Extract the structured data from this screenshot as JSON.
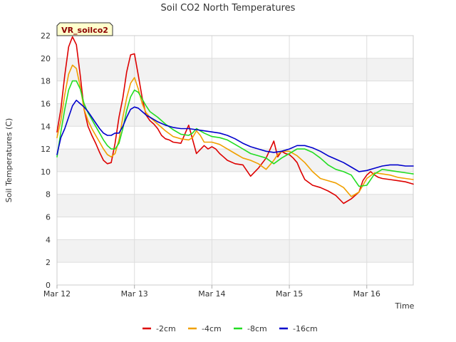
{
  "chart_data": {
    "type": "line",
    "title": "Soil CO2 North Temperatures",
    "badge": "VR_soilco2",
    "xlabel": "Time",
    "ylabel": "Soil Temperatures (C)",
    "xlim": [
      0,
      4.6
    ],
    "ylim": [
      0,
      22
    ],
    "x_ticks": [
      {
        "value": 0,
        "label": "Mar 12"
      },
      {
        "value": 1,
        "label": "Mar 13"
      },
      {
        "value": 2,
        "label": "Mar 14"
      },
      {
        "value": 3,
        "label": "Mar 15"
      },
      {
        "value": 4,
        "label": "Mar 16"
      }
    ],
    "y_ticks": [
      0,
      2,
      4,
      6,
      8,
      10,
      12,
      14,
      16,
      18,
      20,
      22
    ],
    "grid": true,
    "legend_position": "bottom",
    "series": [
      {
        "name": "-2cm",
        "color": "#dd0000",
        "x": [
          0,
          0.05,
          0.1,
          0.15,
          0.2,
          0.25,
          0.3,
          0.35,
          0.4,
          0.45,
          0.5,
          0.55,
          0.6,
          0.65,
          0.7,
          0.75,
          0.8,
          0.85,
          0.9,
          0.95,
          1.0,
          1.05,
          1.1,
          1.15,
          1.2,
          1.25,
          1.3,
          1.35,
          1.4,
          1.45,
          1.5,
          1.6,
          1.7,
          1.8,
          1.9,
          1.95,
          2.0,
          2.05,
          2.1,
          2.15,
          2.2,
          2.3,
          2.4,
          2.5,
          2.6,
          2.7,
          2.8,
          2.85,
          2.9,
          2.95,
          3.0,
          3.05,
          3.1,
          3.15,
          3.2,
          3.3,
          3.4,
          3.5,
          3.6,
          3.7,
          3.8,
          3.9,
          3.95,
          4.0,
          4.05,
          4.1,
          4.15,
          4.2,
          4.3,
          4.4,
          4.5,
          4.6
        ],
        "y": [
          13.5,
          15.5,
          18.5,
          21.0,
          21.9,
          21.2,
          18.5,
          15.5,
          14.0,
          13.2,
          12.5,
          11.7,
          11.0,
          10.7,
          10.8,
          12.5,
          14.8,
          16.5,
          18.8,
          20.3,
          20.4,
          18.5,
          16.5,
          15.0,
          14.5,
          14.2,
          13.8,
          13.2,
          12.9,
          12.8,
          12.6,
          12.5,
          14.1,
          11.6,
          12.3,
          12.0,
          12.2,
          12.0,
          11.6,
          11.3,
          11.0,
          10.7,
          10.6,
          9.6,
          10.3,
          11.2,
          12.7,
          11.3,
          11.8,
          11.6,
          11.5,
          11.2,
          10.8,
          10.0,
          9.3,
          8.8,
          8.6,
          8.3,
          7.9,
          7.2,
          7.6,
          8.2,
          9.2,
          9.7,
          10.0,
          9.7,
          9.5,
          9.4,
          9.3,
          9.2,
          9.1,
          8.9
        ]
      },
      {
        "name": "-4cm",
        "color": "#f0a000",
        "x": [
          0,
          0.05,
          0.1,
          0.15,
          0.2,
          0.25,
          0.3,
          0.35,
          0.4,
          0.45,
          0.5,
          0.55,
          0.6,
          0.65,
          0.7,
          0.75,
          0.8,
          0.85,
          0.9,
          0.95,
          1.0,
          1.05,
          1.1,
          1.15,
          1.2,
          1.3,
          1.4,
          1.5,
          1.6,
          1.7,
          1.75,
          1.8,
          1.85,
          1.9,
          2.0,
          2.1,
          2.2,
          2.3,
          2.4,
          2.5,
          2.6,
          2.7,
          2.8,
          2.85,
          2.9,
          3.0,
          3.1,
          3.2,
          3.3,
          3.4,
          3.5,
          3.6,
          3.7,
          3.8,
          3.9,
          4.0,
          4.1,
          4.2,
          4.3,
          4.4,
          4.5,
          4.6
        ],
        "y": [
          13.0,
          14.5,
          16.8,
          18.6,
          19.4,
          19.1,
          17.5,
          15.5,
          14.5,
          13.8,
          13.2,
          12.6,
          12.0,
          11.5,
          11.3,
          11.6,
          12.8,
          14.8,
          16.5,
          17.8,
          18.3,
          17.3,
          16.0,
          15.2,
          14.8,
          14.2,
          13.6,
          13.1,
          12.9,
          12.8,
          13.0,
          13.6,
          13.2,
          12.6,
          12.6,
          12.4,
          12.0,
          11.6,
          11.2,
          11.0,
          10.7,
          10.2,
          11.0,
          11.5,
          11.8,
          11.8,
          11.4,
          10.8,
          10.0,
          9.4,
          9.2,
          9.0,
          8.6,
          7.8,
          8.2,
          9.4,
          9.9,
          9.8,
          9.7,
          9.5,
          9.4,
          9.3
        ]
      },
      {
        "name": "-8cm",
        "color": "#22dd22",
        "x": [
          0,
          0.05,
          0.1,
          0.15,
          0.2,
          0.25,
          0.3,
          0.35,
          0.4,
          0.45,
          0.5,
          0.55,
          0.6,
          0.65,
          0.7,
          0.75,
          0.8,
          0.85,
          0.9,
          0.95,
          1.0,
          1.05,
          1.1,
          1.15,
          1.2,
          1.3,
          1.4,
          1.5,
          1.6,
          1.7,
          1.75,
          1.8,
          1.9,
          2.0,
          2.1,
          2.2,
          2.3,
          2.4,
          2.5,
          2.6,
          2.7,
          2.8,
          2.9,
          3.0,
          3.1,
          3.2,
          3.3,
          3.4,
          3.5,
          3.6,
          3.7,
          3.8,
          3.9,
          4.0,
          4.1,
          4.2,
          4.3,
          4.4,
          4.5,
          4.6
        ],
        "y": [
          11.3,
          13.5,
          15.5,
          17.2,
          18.0,
          18.0,
          17.3,
          16.0,
          15.2,
          14.6,
          14.0,
          13.4,
          12.8,
          12.3,
          12.0,
          12.0,
          12.5,
          13.8,
          15.4,
          16.6,
          17.2,
          17.0,
          16.4,
          15.8,
          15.3,
          14.8,
          14.2,
          13.7,
          13.3,
          13.2,
          13.4,
          13.8,
          13.4,
          13.1,
          13.0,
          12.8,
          12.4,
          12.0,
          11.6,
          11.4,
          11.2,
          10.7,
          11.2,
          11.6,
          12.0,
          12.0,
          11.7,
          11.2,
          10.6,
          10.2,
          10.0,
          9.7,
          8.7,
          8.8,
          9.8,
          10.2,
          10.1,
          10.0,
          9.9,
          9.8
        ]
      },
      {
        "name": "-16cm",
        "color": "#0000cc",
        "x": [
          0,
          0.05,
          0.1,
          0.15,
          0.2,
          0.25,
          0.3,
          0.35,
          0.4,
          0.45,
          0.5,
          0.55,
          0.6,
          0.65,
          0.7,
          0.75,
          0.8,
          0.85,
          0.9,
          0.95,
          1.0,
          1.05,
          1.1,
          1.15,
          1.2,
          1.3,
          1.4,
          1.5,
          1.6,
          1.7,
          1.8,
          1.9,
          2.0,
          2.1,
          2.2,
          2.3,
          2.4,
          2.5,
          2.6,
          2.7,
          2.8,
          2.9,
          3.0,
          3.1,
          3.2,
          3.3,
          3.4,
          3.5,
          3.6,
          3.7,
          3.8,
          3.9,
          4.0,
          4.1,
          4.2,
          4.3,
          4.4,
          4.5,
          4.6
        ],
        "y": [
          11.5,
          13.0,
          13.8,
          14.8,
          15.8,
          16.3,
          16.0,
          15.7,
          15.3,
          14.8,
          14.3,
          13.8,
          13.4,
          13.2,
          13.2,
          13.4,
          13.4,
          14.0,
          14.8,
          15.5,
          15.7,
          15.6,
          15.3,
          15.0,
          14.8,
          14.4,
          14.1,
          13.9,
          13.8,
          13.8,
          13.7,
          13.6,
          13.5,
          13.4,
          13.2,
          12.9,
          12.5,
          12.2,
          12.0,
          11.8,
          11.7,
          11.8,
          12.0,
          12.3,
          12.3,
          12.1,
          11.8,
          11.4,
          11.1,
          10.8,
          10.4,
          10.0,
          10.1,
          10.3,
          10.5,
          10.6,
          10.6,
          10.5,
          10.5
        ]
      }
    ]
  }
}
